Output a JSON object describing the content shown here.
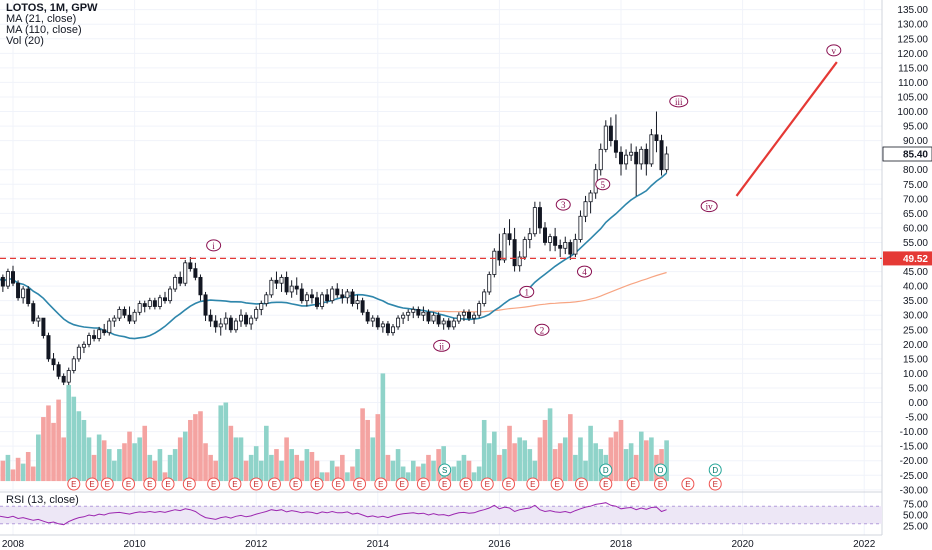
{
  "legend": {
    "title": "LOTOS, 1M, GPW",
    "ma21": "MA (21, close)",
    "ma110": "MA (110, close)",
    "vol": "Vol (20)",
    "rsi": "RSI (13, close)"
  },
  "colors": {
    "up": "#26a69a",
    "down": "#ef5350",
    "vol_up": "#8fd3c9",
    "vol_down": "#f4a3a1",
    "ma21": "#2e86ab",
    "ma110": "#f7a583",
    "rsi": "#9c27b0",
    "rsi_band": "#ede7f6",
    "projection": "#e53935",
    "hline": "#e53935",
    "price_tag": "#ffffff"
  },
  "chart_data": {
    "type": "candlestick",
    "symbol": "LOTOS",
    "interval": "1M",
    "exchange": "GPW",
    "x_range": [
      2008,
      2022.6
    ],
    "x_ticks": [
      "2008",
      "2010",
      "2012",
      "2014",
      "2016",
      "2018",
      "2020",
      "2022"
    ],
    "x_tick_years": [
      2008,
      2010,
      2012,
      2014,
      2016,
      2018,
      2020,
      2022
    ],
    "price_axis": {
      "ylim": [
        -30,
        140
      ],
      "ticks": [
        "135.00",
        "130.00",
        "125.00",
        "120.00",
        "115.00",
        "110.00",
        "105.00",
        "100.00",
        "95.00",
        "90.00",
        "85.40",
        "80.00",
        "75.00",
        "70.00",
        "65.00",
        "60.00",
        "55.00",
        "50.00",
        "45.00",
        "40.00",
        "35.00",
        "30.00",
        "25.00",
        "20.00",
        "15.00",
        "10.00",
        "5.00",
        "0.00",
        "-5.00",
        "-10.00",
        "-15.00",
        "-20.00",
        "-25.00",
        "-30.00"
      ],
      "tick_values": [
        135,
        130,
        125,
        120,
        115,
        110,
        105,
        100,
        95,
        90,
        85.4,
        80,
        75,
        70,
        65,
        60,
        55,
        50,
        45,
        40,
        35,
        30,
        25,
        20,
        15,
        10,
        5,
        0,
        -5,
        -10,
        -15,
        -20,
        -25,
        -30
      ]
    },
    "current_price_label": "85.40",
    "current_price": 85.4,
    "level_label": "49.52",
    "level": 49.52,
    "rsi_axis": {
      "ticks": [
        "75.00",
        "50.00",
        "25.00"
      ],
      "tick_values": [
        75,
        50,
        25
      ],
      "band": [
        30,
        70
      ]
    },
    "wave_labels": [
      {
        "text": "i",
        "year": 2011.3,
        "price": 54
      },
      {
        "text": "ii",
        "year": 2015.05,
        "price": 19.5
      },
      {
        "text": "1",
        "year": 2016.45,
        "price": 38
      },
      {
        "text": "2",
        "year": 2016.7,
        "price": 25
      },
      {
        "text": "3",
        "year": 2017.05,
        "price": 68
      },
      {
        "text": "4",
        "year": 2017.4,
        "price": 45
      },
      {
        "text": "5",
        "year": 2017.7,
        "price": 75
      },
      {
        "text": "iii",
        "year": 2018.95,
        "price": 103.5
      },
      {
        "text": "iv",
        "year": 2019.45,
        "price": 67.5
      },
      {
        "text": "v",
        "year": 2021.5,
        "price": 121
      }
    ],
    "projection": {
      "from": [
        2019.9,
        71
      ],
      "to": [
        2021.55,
        117
      ]
    },
    "events": [
      {
        "t": "E",
        "year": 2009.0
      },
      {
        "t": "E",
        "year": 2009.3
      },
      {
        "t": "E",
        "year": 2009.55
      },
      {
        "t": "E",
        "year": 2009.9
      },
      {
        "t": "E",
        "year": 2010.25
      },
      {
        "t": "E",
        "year": 2010.55
      },
      {
        "t": "E",
        "year": 2010.9
      },
      {
        "t": "E",
        "year": 2011.3
      },
      {
        "t": "E",
        "year": 2011.65
      },
      {
        "t": "E",
        "year": 2012.0
      },
      {
        "t": "E",
        "year": 2012.3
      },
      {
        "t": "E",
        "year": 2012.65
      },
      {
        "t": "E",
        "year": 2013.0
      },
      {
        "t": "E",
        "year": 2013.35
      },
      {
        "t": "E",
        "year": 2013.7
      },
      {
        "t": "E",
        "year": 2014.05
      },
      {
        "t": "E",
        "year": 2014.4
      },
      {
        "t": "E",
        "year": 2014.75
      },
      {
        "t": "S",
        "year": 2015.1
      },
      {
        "t": "E",
        "year": 2015.1
      },
      {
        "t": "E",
        "year": 2015.45
      },
      {
        "t": "E",
        "year": 2015.8
      },
      {
        "t": "E",
        "year": 2016.15
      },
      {
        "t": "E",
        "year": 2016.55
      },
      {
        "t": "E",
        "year": 2016.95
      },
      {
        "t": "E",
        "year": 2017.35
      },
      {
        "t": "D",
        "year": 2017.75
      },
      {
        "t": "E",
        "year": 2017.75
      },
      {
        "t": "E",
        "year": 2018.2
      },
      {
        "t": "D",
        "year": 2018.65
      },
      {
        "t": "E",
        "year": 2018.65
      },
      {
        "t": "E",
        "year": 2019.1
      },
      {
        "t": "D",
        "year": 2019.55
      },
      {
        "t": "E",
        "year": 2019.55
      }
    ],
    "ohlc_monthly": [
      [
        47,
        48,
        41,
        43
      ],
      [
        43,
        44,
        38,
        40
      ],
      [
        40,
        46,
        39,
        45
      ],
      [
        45,
        47,
        40,
        41
      ],
      [
        41,
        42,
        35,
        36
      ],
      [
        36,
        40,
        34,
        39
      ],
      [
        39,
        40,
        33,
        34
      ],
      [
        34,
        35,
        27,
        28
      ],
      [
        28,
        30,
        26,
        29
      ],
      [
        29,
        29,
        22,
        23
      ],
      [
        23,
        24,
        14,
        15
      ],
      [
        15,
        17,
        11,
        13
      ],
      [
        13,
        14,
        8,
        9
      ],
      [
        9,
        10,
        6,
        7
      ],
      [
        7,
        12,
        6,
        11
      ],
      [
        11,
        16,
        10,
        15
      ],
      [
        15,
        20,
        14,
        19
      ],
      [
        19,
        21,
        17,
        20
      ],
      [
        20,
        24,
        19,
        23
      ],
      [
        23,
        25,
        21,
        22
      ],
      [
        22,
        26,
        21,
        25
      ],
      [
        25,
        27,
        23,
        24
      ],
      [
        24,
        29,
        23,
        28
      ],
      [
        28,
        30,
        26,
        29
      ],
      [
        29,
        33,
        28,
        32
      ],
      [
        32,
        33,
        29,
        30
      ],
      [
        30,
        33,
        27,
        28
      ],
      [
        28,
        32,
        27,
        31
      ],
      [
        31,
        35,
        30,
        34
      ],
      [
        34,
        35,
        31,
        33
      ],
      [
        33,
        36,
        32,
        35
      ],
      [
        35,
        36,
        32,
        33
      ],
      [
        33,
        37,
        32,
        36
      ],
      [
        36,
        38,
        34,
        35
      ],
      [
        35,
        40,
        34,
        39
      ],
      [
        39,
        44,
        38,
        43
      ],
      [
        43,
        45,
        40,
        41
      ],
      [
        41,
        49,
        40,
        48
      ],
      [
        48,
        50,
        45,
        46
      ],
      [
        46,
        48,
        42,
        43
      ],
      [
        43,
        44,
        35,
        37
      ],
      [
        37,
        38,
        28,
        30
      ],
      [
        30,
        32,
        26,
        28
      ],
      [
        28,
        30,
        24,
        26
      ],
      [
        26,
        29,
        23,
        27
      ],
      [
        27,
        31,
        25,
        29
      ],
      [
        29,
        30,
        24,
        25
      ],
      [
        25,
        29,
        24,
        28
      ],
      [
        28,
        32,
        26,
        30
      ],
      [
        30,
        31,
        26,
        27
      ],
      [
        27,
        30,
        25,
        29
      ],
      [
        29,
        33,
        28,
        32
      ],
      [
        32,
        35,
        30,
        34
      ],
      [
        34,
        38,
        33,
        37
      ],
      [
        37,
        43,
        36,
        42
      ],
      [
        42,
        45,
        39,
        41
      ],
      [
        41,
        44,
        38,
        43
      ],
      [
        43,
        45,
        37,
        38
      ],
      [
        38,
        42,
        36,
        40
      ],
      [
        40,
        43,
        37,
        39
      ],
      [
        39,
        41,
        34,
        35
      ],
      [
        35,
        38,
        33,
        37
      ],
      [
        37,
        39,
        34,
        36
      ],
      [
        36,
        38,
        32,
        33
      ],
      [
        33,
        38,
        32,
        37
      ],
      [
        37,
        39,
        34,
        35
      ],
      [
        35,
        40,
        34,
        39
      ],
      [
        39,
        41,
        36,
        37
      ],
      [
        37,
        39,
        34,
        36
      ],
      [
        36,
        39,
        34,
        38
      ],
      [
        38,
        39,
        33,
        34
      ],
      [
        34,
        37,
        32,
        35
      ],
      [
        35,
        36,
        30,
        31
      ],
      [
        31,
        32,
        27,
        28
      ],
      [
        28,
        30,
        26,
        29
      ],
      [
        29,
        30,
        25,
        26
      ],
      [
        26,
        28,
        24,
        27
      ],
      [
        27,
        28,
        23,
        24
      ],
      [
        24,
        27,
        23,
        26
      ],
      [
        26,
        30,
        25,
        29
      ],
      [
        29,
        31,
        27,
        30
      ],
      [
        30,
        32,
        28,
        31
      ],
      [
        31,
        33,
        29,
        32
      ],
      [
        32,
        33,
        29,
        30
      ],
      [
        30,
        33,
        28,
        31
      ],
      [
        31,
        32,
        27,
        28
      ],
      [
        28,
        31,
        27,
        30
      ],
      [
        30,
        31,
        26,
        27
      ],
      [
        27,
        29,
        25,
        28
      ],
      [
        28,
        29,
        25,
        26
      ],
      [
        26,
        29,
        25,
        28
      ],
      [
        28,
        31,
        27,
        30
      ],
      [
        30,
        32,
        28,
        31
      ],
      [
        31,
        32,
        28,
        29
      ],
      [
        29,
        31,
        27,
        30
      ],
      [
        30,
        35,
        29,
        34
      ],
      [
        34,
        39,
        33,
        38
      ],
      [
        38,
        45,
        37,
        44
      ],
      [
        44,
        53,
        43,
        52
      ],
      [
        52,
        58,
        47,
        49
      ],
      [
        49,
        60,
        48,
        58
      ],
      [
        58,
        63,
        54,
        56
      ],
      [
        56,
        60,
        45,
        47
      ],
      [
        47,
        52,
        45,
        50
      ],
      [
        50,
        57,
        49,
        56
      ],
      [
        56,
        60,
        53,
        58
      ],
      [
        58,
        69,
        57,
        67
      ],
      [
        67,
        69,
        58,
        60
      ],
      [
        60,
        62,
        54,
        55
      ],
      [
        55,
        58,
        52,
        57
      ],
      [
        57,
        60,
        52,
        54
      ],
      [
        54,
        56,
        50,
        53
      ],
      [
        53,
        57,
        51,
        55
      ],
      [
        55,
        56,
        49,
        51
      ],
      [
        51,
        58,
        50,
        56
      ],
      [
        56,
        66,
        55,
        64
      ],
      [
        64,
        71,
        62,
        69
      ],
      [
        69,
        73,
        65,
        72
      ],
      [
        72,
        82,
        70,
        80
      ],
      [
        80,
        89,
        78,
        87
      ],
      [
        87,
        97,
        86,
        95
      ],
      [
        95,
        98,
        88,
        90
      ],
      [
        90,
        99,
        84,
        86
      ],
      [
        86,
        88,
        78,
        82
      ],
      [
        82,
        87,
        80,
        85
      ],
      [
        85,
        89,
        83,
        86
      ],
      [
        86,
        88,
        71,
        82
      ],
      [
        82,
        88,
        80,
        87
      ],
      [
        87,
        89,
        78,
        82
      ],
      [
        82,
        94,
        81,
        92
      ],
      [
        92,
        100,
        86,
        90
      ],
      [
        90,
        92,
        78,
        80
      ],
      [
        80,
        88,
        79,
        85.4
      ]
    ],
    "volume_monthly": [
      -22,
      -20,
      -18,
      -23,
      -19,
      -21,
      -17,
      -22,
      -11,
      -5,
      -1,
      -7,
      1,
      -12,
      6,
      2,
      -3,
      -6,
      -12,
      -18,
      -11,
      -13,
      -16,
      -20,
      -16,
      -14,
      -10,
      -14,
      -12,
      -8,
      -18,
      -20,
      -16,
      -24,
      -18,
      -16,
      -12,
      -10,
      -6,
      -4,
      -3,
      -14,
      -18,
      -20,
      -1,
      0,
      -8,
      -12,
      -12,
      -20,
      -18,
      -15,
      -20,
      -8,
      -18,
      -16,
      -20,
      -12,
      -16,
      -18,
      -20,
      -16,
      -17,
      -20,
      -24,
      -24,
      -20,
      -22,
      -18,
      -24,
      -22,
      -16,
      -2,
      -6,
      -12,
      -4,
      10,
      -18,
      -20,
      -16,
      -22,
      -24,
      -20,
      -22,
      -21,
      -18,
      -20,
      -16,
      -15,
      -24,
      -22,
      -20,
      -18,
      -20,
      -24,
      -22,
      -6,
      -14,
      -10,
      -18,
      -16,
      -8,
      -14,
      -12,
      -13,
      -16,
      -20,
      -12,
      -6,
      -2,
      -16,
      -14,
      -12,
      -4,
      -18,
      -12,
      -20,
      -8,
      -14,
      -16,
      -18,
      -12,
      -10,
      -6,
      -16,
      -14,
      -18,
      -10,
      -13,
      -12,
      -18,
      -16,
      -13
    ],
    "rsi_monthly": [
      48,
      46,
      44,
      47,
      42,
      44,
      41,
      38,
      40,
      36,
      32,
      34,
      30,
      28,
      35,
      40,
      44,
      46,
      50,
      48,
      52,
      50,
      54,
      55,
      56,
      54,
      52,
      55,
      57,
      56,
      58,
      56,
      58,
      56,
      59,
      62,
      60,
      64,
      62,
      58,
      50,
      44,
      42,
      40,
      44,
      46,
      43,
      47,
      49,
      46,
      48,
      52,
      55,
      58,
      62,
      60,
      62,
      57,
      60,
      58,
      55,
      57,
      56,
      53,
      57,
      55,
      58,
      55,
      55,
      57,
      52,
      54,
      50,
      46,
      48,
      45,
      47,
      44,
      48,
      51,
      53,
      54,
      55,
      53,
      54,
      50,
      53,
      50,
      51,
      48,
      52,
      55,
      56,
      54,
      55,
      59,
      62,
      66,
      72,
      64,
      68,
      66,
      58,
      62,
      64,
      66,
      72,
      62,
      58,
      60,
      57,
      56,
      58,
      55,
      60,
      64,
      68,
      70,
      74,
      76,
      78,
      72,
      70,
      64,
      66,
      67,
      62,
      66,
      63,
      67,
      68,
      58,
      62
    ]
  }
}
